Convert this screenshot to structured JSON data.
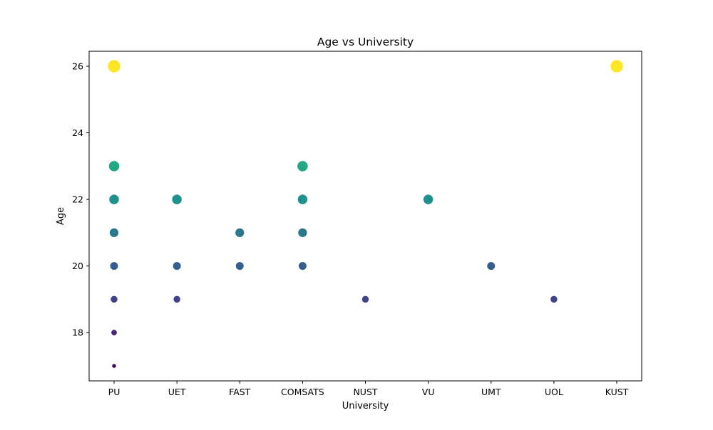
{
  "chart_data": {
    "type": "scatter",
    "title": "Age vs University",
    "xlabel": "University",
    "ylabel": "Age",
    "categories": [
      "PU",
      "UET",
      "FAST",
      "COMSATS",
      "NUST",
      "VU",
      "UMT",
      "UOL",
      "KUST"
    ],
    "ylim": [
      16.55,
      26.45
    ],
    "yticks": [
      18,
      20,
      22,
      24,
      26
    ],
    "grid": false,
    "colormap": "viridis",
    "color_range": [
      17,
      26
    ],
    "marker_size_encodes": "Age",
    "points": [
      {
        "x": "PU",
        "y": 26
      },
      {
        "x": "PU",
        "y": 23
      },
      {
        "x": "PU",
        "y": 22
      },
      {
        "x": "PU",
        "y": 21
      },
      {
        "x": "PU",
        "y": 20
      },
      {
        "x": "PU",
        "y": 19
      },
      {
        "x": "PU",
        "y": 18
      },
      {
        "x": "PU",
        "y": 17
      },
      {
        "x": "UET",
        "y": 22
      },
      {
        "x": "UET",
        "y": 20
      },
      {
        "x": "UET",
        "y": 19
      },
      {
        "x": "FAST",
        "y": 21
      },
      {
        "x": "FAST",
        "y": 20
      },
      {
        "x": "COMSATS",
        "y": 23
      },
      {
        "x": "COMSATS",
        "y": 22
      },
      {
        "x": "COMSATS",
        "y": 21
      },
      {
        "x": "COMSATS",
        "y": 20
      },
      {
        "x": "NUST",
        "y": 19
      },
      {
        "x": "VU",
        "y": 22
      },
      {
        "x": "UMT",
        "y": 20
      },
      {
        "x": "UOL",
        "y": 19
      },
      {
        "x": "KUST",
        "y": 26
      }
    ]
  }
}
